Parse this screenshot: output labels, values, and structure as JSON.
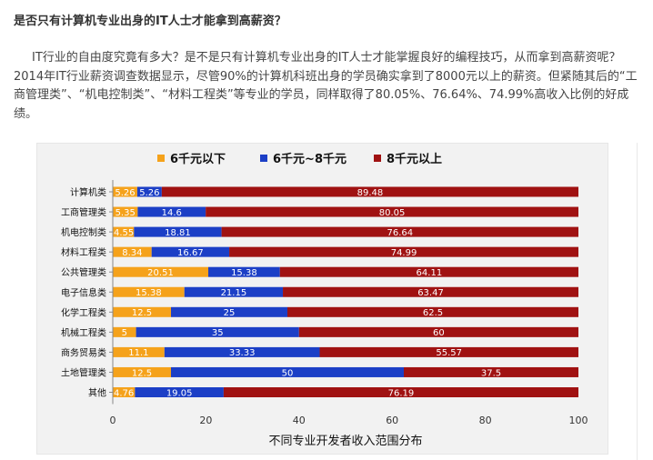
{
  "article": {
    "title": "是否只有计算机专业出身的IT人士才能拿到高薪资？",
    "paragraph": "IT行业的自由度究竟有多大？是不是只有计算机专业出身的IT人士才能掌握良好的编程技巧，从而拿到高薪资呢？2014年IT行业薪资调查数据显示，尽管90%的计算机科班出身的学员确实拿到了8000元以上的薪资。但紧随其后的“工商管理类”、“机电控制类”、“材料工程类”等专业的学员，同样取得了80.05%、76.64%、74.99%高收入比例的好成绩。"
  },
  "chart_data": {
    "type": "bar",
    "orientation": "horizontal",
    "stacked": true,
    "title": "",
    "xlabel": "不同专业开发者收入范围分布",
    "ylabel": "",
    "xlim": [
      0,
      100
    ],
    "xticks": [
      0,
      20,
      40,
      60,
      80,
      100
    ],
    "legend_position": "top",
    "grid": false,
    "categories": [
      "计算机类",
      "工商管理类",
      "机电控制类",
      "材料工程类",
      "公共管理类",
      "电子信息类",
      "化学工程类",
      "机械工程类",
      "商务贸易类",
      "土地管理类",
      "其他"
    ],
    "series": [
      {
        "name": "6千元以下",
        "color": "#f5a21b",
        "values": [
          5.26,
          5.35,
          4.55,
          8.34,
          20.51,
          15.38,
          12.5,
          5,
          11.1,
          12.5,
          4.76
        ]
      },
      {
        "name": "6千元~8千元",
        "color": "#1c3fc6",
        "values": [
          5.26,
          14.6,
          18.81,
          16.67,
          15.38,
          21.15,
          25,
          35,
          33.33,
          50,
          19.05
        ]
      },
      {
        "name": "8千元以上",
        "color": "#a01212",
        "values": [
          89.48,
          80.05,
          76.64,
          74.99,
          64.11,
          63.47,
          62.5,
          60,
          55.57,
          37.5,
          76.19
        ]
      }
    ]
  }
}
